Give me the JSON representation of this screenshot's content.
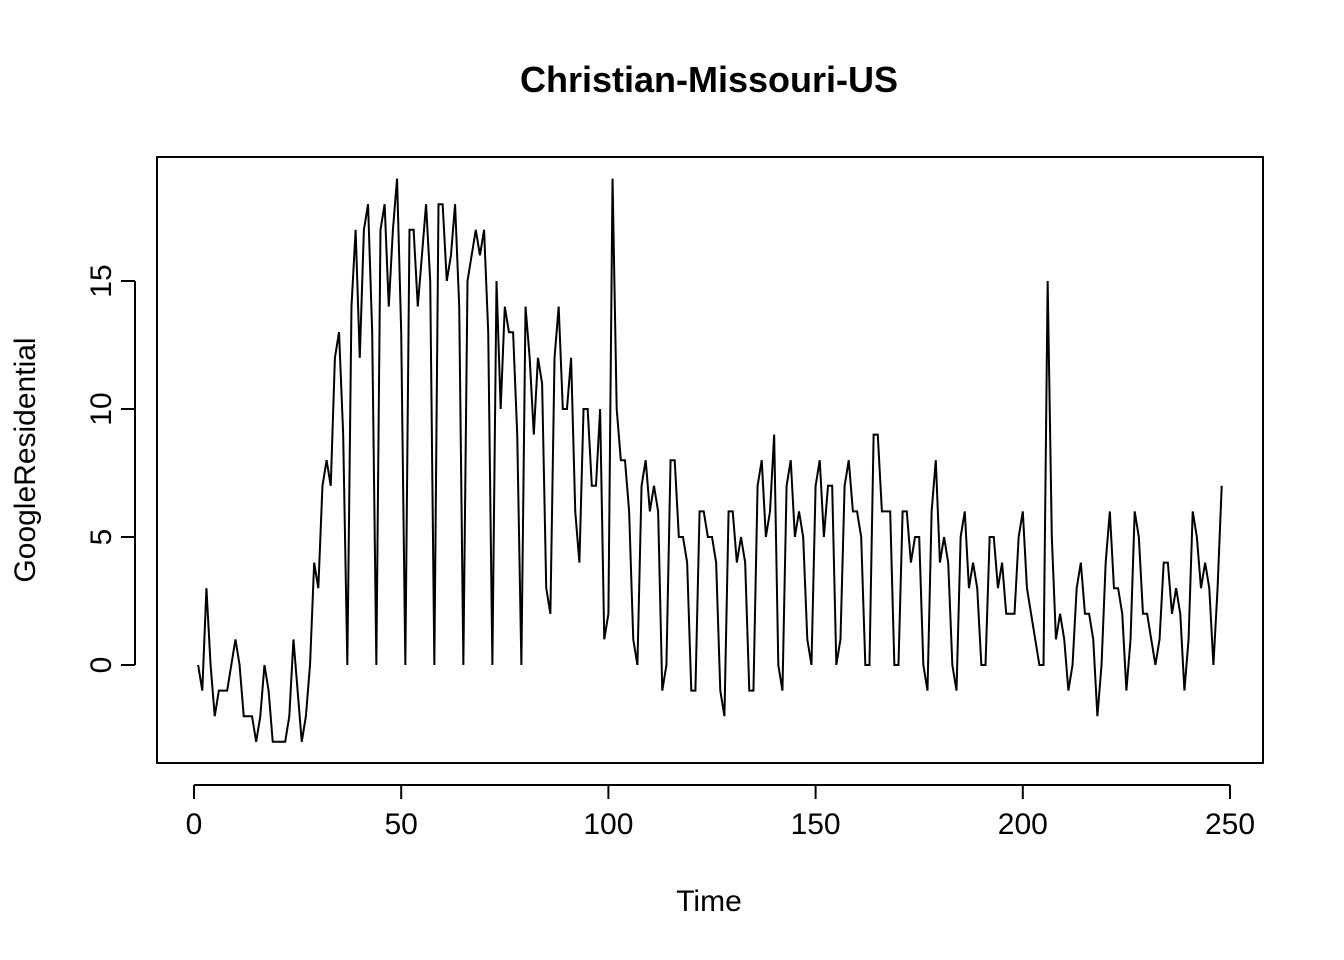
{
  "chart_data": {
    "type": "line",
    "title": "Christian-Missouri-US",
    "xlabel": "Time",
    "ylabel": "GoogleResidential",
    "xlim": [
      1,
      248
    ],
    "ylim": [
      -3,
      19
    ],
    "x_ticks": [
      0,
      50,
      100,
      150,
      200,
      250
    ],
    "y_ticks": [
      0,
      5,
      10,
      15
    ],
    "grid": false,
    "series": [
      {
        "x_start": 1,
        "values": [
          0,
          -1,
          3,
          0,
          -2,
          -1,
          -1,
          -1,
          0,
          1,
          0,
          -2,
          -2,
          -2,
          -3,
          -2,
          0,
          -1,
          -3,
          -3,
          -3,
          -3,
          -2,
          1,
          -1,
          -3,
          -2,
          0,
          4,
          3,
          7,
          8,
          7,
          12,
          13,
          9,
          0,
          14,
          17,
          12,
          17,
          18,
          13,
          0,
          17,
          18,
          14,
          17,
          19,
          13,
          0,
          17,
          17,
          14,
          16,
          18,
          15,
          0,
          18,
          18,
          15,
          16,
          18,
          14,
          0,
          15,
          16,
          17,
          16,
          17,
          13,
          0,
          15,
          10,
          14,
          13,
          13,
          9,
          0,
          14,
          12,
          9,
          12,
          11,
          3,
          2,
          12,
          14,
          10,
          10,
          12,
          6,
          4,
          10,
          10,
          7,
          7,
          10,
          1,
          2,
          19,
          10,
          8,
          8,
          6,
          1,
          0,
          7,
          8,
          6,
          7,
          6,
          -1,
          0,
          8,
          8,
          5,
          5,
          4,
          -1,
          -1,
          6,
          6,
          5,
          5,
          4,
          -1,
          -2,
          6,
          6,
          4,
          5,
          4,
          -1,
          -1,
          7,
          8,
          5,
          6,
          9,
          0,
          -1,
          7,
          8,
          5,
          6,
          5,
          1,
          0,
          7,
          8,
          5,
          7,
          7,
          0,
          1,
          7,
          8,
          6,
          6,
          5,
          0,
          0,
          9,
          9,
          6,
          6,
          6,
          0,
          0,
          6,
          6,
          4,
          5,
          5,
          0,
          -1,
          6,
          8,
          4,
          5,
          4,
          0,
          -1,
          5,
          6,
          3,
          4,
          3,
          0,
          0,
          5,
          5,
          3,
          4,
          2,
          2,
          2,
          5,
          6,
          3,
          2,
          1,
          0,
          0,
          15,
          5,
          1,
          2,
          1,
          -1,
          0,
          3,
          4,
          2,
          2,
          1,
          -2,
          0,
          4,
          6,
          3,
          3,
          2,
          -1,
          1,
          6,
          5,
          2,
          2,
          1,
          0,
          1,
          4,
          4,
          2,
          3,
          2,
          -1,
          1,
          6,
          5,
          3,
          4,
          3,
          0,
          3,
          7
        ]
      }
    ]
  }
}
